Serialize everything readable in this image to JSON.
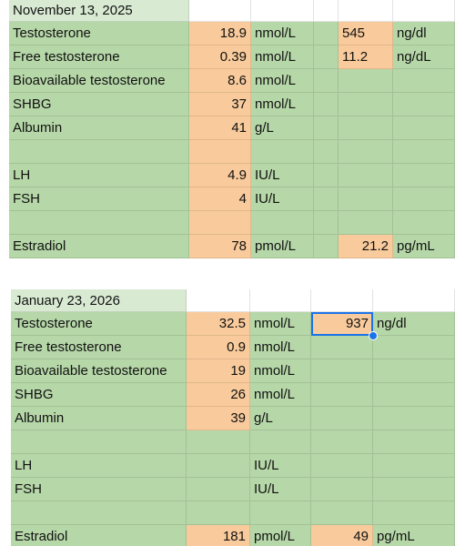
{
  "tables": [
    {
      "rows": [
        [
          "November 13, 2025",
          null,
          null,
          null,
          null,
          null
        ],
        [
          "Testosterone",
          18.9,
          "nmol/L",
          null,
          545,
          "ng/dl"
        ],
        [
          "Free testosterone",
          0.39,
          "nmol/L",
          null,
          11.2,
          "ng/dL"
        ],
        [
          "Bioavailable testosterone",
          8.6,
          "nmol/L",
          null,
          null,
          null
        ],
        [
          "SHBG",
          37,
          "nmol/L",
          null,
          null,
          null
        ],
        [
          "Albumin",
          41,
          "g/L",
          null,
          null,
          null
        ],
        [
          null,
          null,
          null,
          null,
          null,
          null
        ],
        [
          "LH",
          4.9,
          "IU/L",
          null,
          null,
          null
        ],
        [
          "FSH",
          4,
          "IU/L",
          null,
          null,
          null
        ],
        [
          null,
          null,
          null,
          null,
          null,
          null
        ],
        [
          "Estradiol",
          78,
          "pmol/L",
          null,
          21.2,
          "pg/mL"
        ]
      ]
    },
    {
      "rows": [
        [
          "January 23, 2026",
          null,
          null,
          null,
          null
        ],
        [
          "Testosterone",
          32.5,
          "nmol/L",
          937,
          "ng/dl"
        ],
        [
          "Free testosterone",
          0.9,
          "nmol/L",
          null,
          null
        ],
        [
          "Bioavailable testosterone",
          19,
          "nmol/L",
          null,
          null
        ],
        [
          "SHBG",
          26,
          "nmol/L",
          null,
          null
        ],
        [
          "Albumin",
          39,
          "g/L",
          null,
          null
        ],
        [
          null,
          null,
          null,
          null,
          null
        ],
        [
          "LH",
          null,
          "IU/L",
          null,
          null
        ],
        [
          "FSH",
          null,
          "IU/L",
          null,
          null
        ],
        [
          null,
          null,
          null,
          null,
          null
        ],
        [
          "Estradiol",
          181,
          "pmol/L",
          49,
          "pg/mL"
        ]
      ]
    }
  ]
}
